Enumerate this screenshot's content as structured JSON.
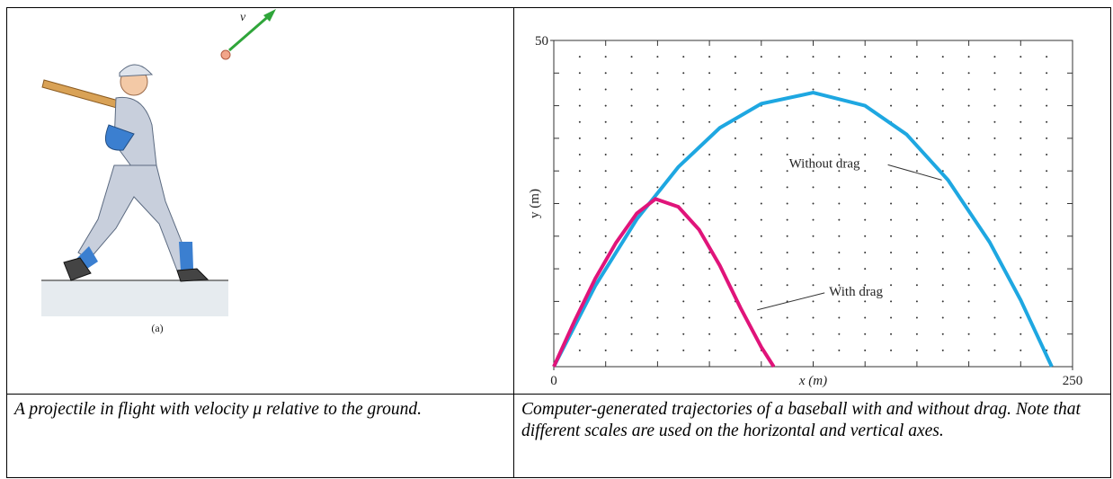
{
  "figure_a": {
    "velocity_label": "v",
    "label": "(a)"
  },
  "chart_data": {
    "type": "line",
    "xlabel": "x (m)",
    "ylabel": "y (m)",
    "xlim": [
      0,
      250
    ],
    "ylim": [
      0,
      50
    ],
    "xticks": [
      0,
      250
    ],
    "yticks": [
      50
    ],
    "x_minor_step": 25,
    "y_minor_step": 5,
    "grid": "dots",
    "series": [
      {
        "name": "Without drag",
        "color": "#1ea7e1",
        "x": [
          0,
          20,
          40,
          60,
          80,
          100,
          125,
          150,
          170,
          190,
          210,
          225,
          240
        ],
        "values": [
          0,
          12.4,
          22.6,
          30.6,
          36.6,
          40.3,
          42,
          40,
          35.6,
          28.6,
          19.1,
          10.2,
          0
        ]
      },
      {
        "name": "With drag",
        "color": "#e0147a",
        "x": [
          0,
          10,
          20,
          30,
          40,
          49,
          60,
          70,
          80,
          90,
          100,
          106
        ],
        "values": [
          0,
          7,
          13.5,
          19,
          23.5,
          25.7,
          24.5,
          21,
          15.5,
          9,
          3,
          0
        ]
      }
    ],
    "annotations": [
      {
        "text": "Without drag",
        "series": 0,
        "x": 187,
        "y": 28.6
      },
      {
        "text": "With drag",
        "series": 1,
        "x": 98,
        "y": 8.7
      }
    ]
  },
  "captions": [
    "A projectile in flight with velocity μ relative to the ground.",
    "Computer-generated trajectories of a baseball with and without drag. Note that different scales are used on the horizontal and vertical axes."
  ]
}
